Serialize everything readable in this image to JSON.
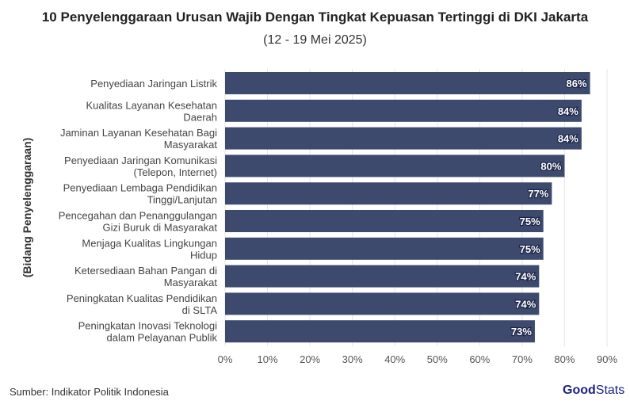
{
  "chart_data": {
    "type": "bar",
    "orientation": "horizontal",
    "title": "10 Penyelenggaraan Urusan Wajib Dengan Tingkat Kepuasan Tertinggi di DKI Jakarta",
    "subtitle": "(12 - 19 Mei 2025)",
    "ylabel": "(Bidang Penyelenggaraan)",
    "xlabel": "",
    "categories": [
      [
        "Penyediaan Jaringan Listrik"
      ],
      [
        "Kualitas Layanan Kesehatan",
        "Daerah"
      ],
      [
        "Jaminan Layanan Kesehatan Bagi",
        "Masyarakat"
      ],
      [
        "Penyediaan Jaringan Komunikasi",
        "(Telepon, Internet)"
      ],
      [
        "Penyediaan Lembaga Pendidikan",
        "Tinggi/Lanjutan"
      ],
      [
        "Pencegahan dan Penanggulangan",
        "Gizi Buruk di Masyarakat"
      ],
      [
        "Menjaga Kualitas Lingkungan",
        "Hidup"
      ],
      [
        "Ketersediaan Bahan Pangan di",
        "Masyarakat"
      ],
      [
        "Peningkatan Kualitas Pendidikan",
        "di SLTA"
      ],
      [
        "Peningkatan Inovasi Teknologi",
        "dalam Pelayanan Publik"
      ]
    ],
    "values": [
      86,
      84,
      84,
      80,
      77,
      75,
      75,
      74,
      74,
      73
    ],
    "data_labels": [
      "86%",
      "84%",
      "84%",
      "80%",
      "77%",
      "75%",
      "75%",
      "74%",
      "74%",
      "73%"
    ],
    "xlim": [
      0,
      90
    ],
    "xticks": [
      0,
      10,
      20,
      30,
      40,
      50,
      60,
      70,
      80,
      90
    ],
    "xtick_labels": [
      "0%",
      "10%",
      "20%",
      "30%",
      "40%",
      "50%",
      "60%",
      "70%",
      "80%",
      "90%"
    ],
    "grid": true,
    "bar_color": "#3d4a6e"
  },
  "footer": {
    "source": "Sumber: Indikator Politik Indonesia",
    "logo_bold": "Good",
    "logo_light": "Stats"
  }
}
